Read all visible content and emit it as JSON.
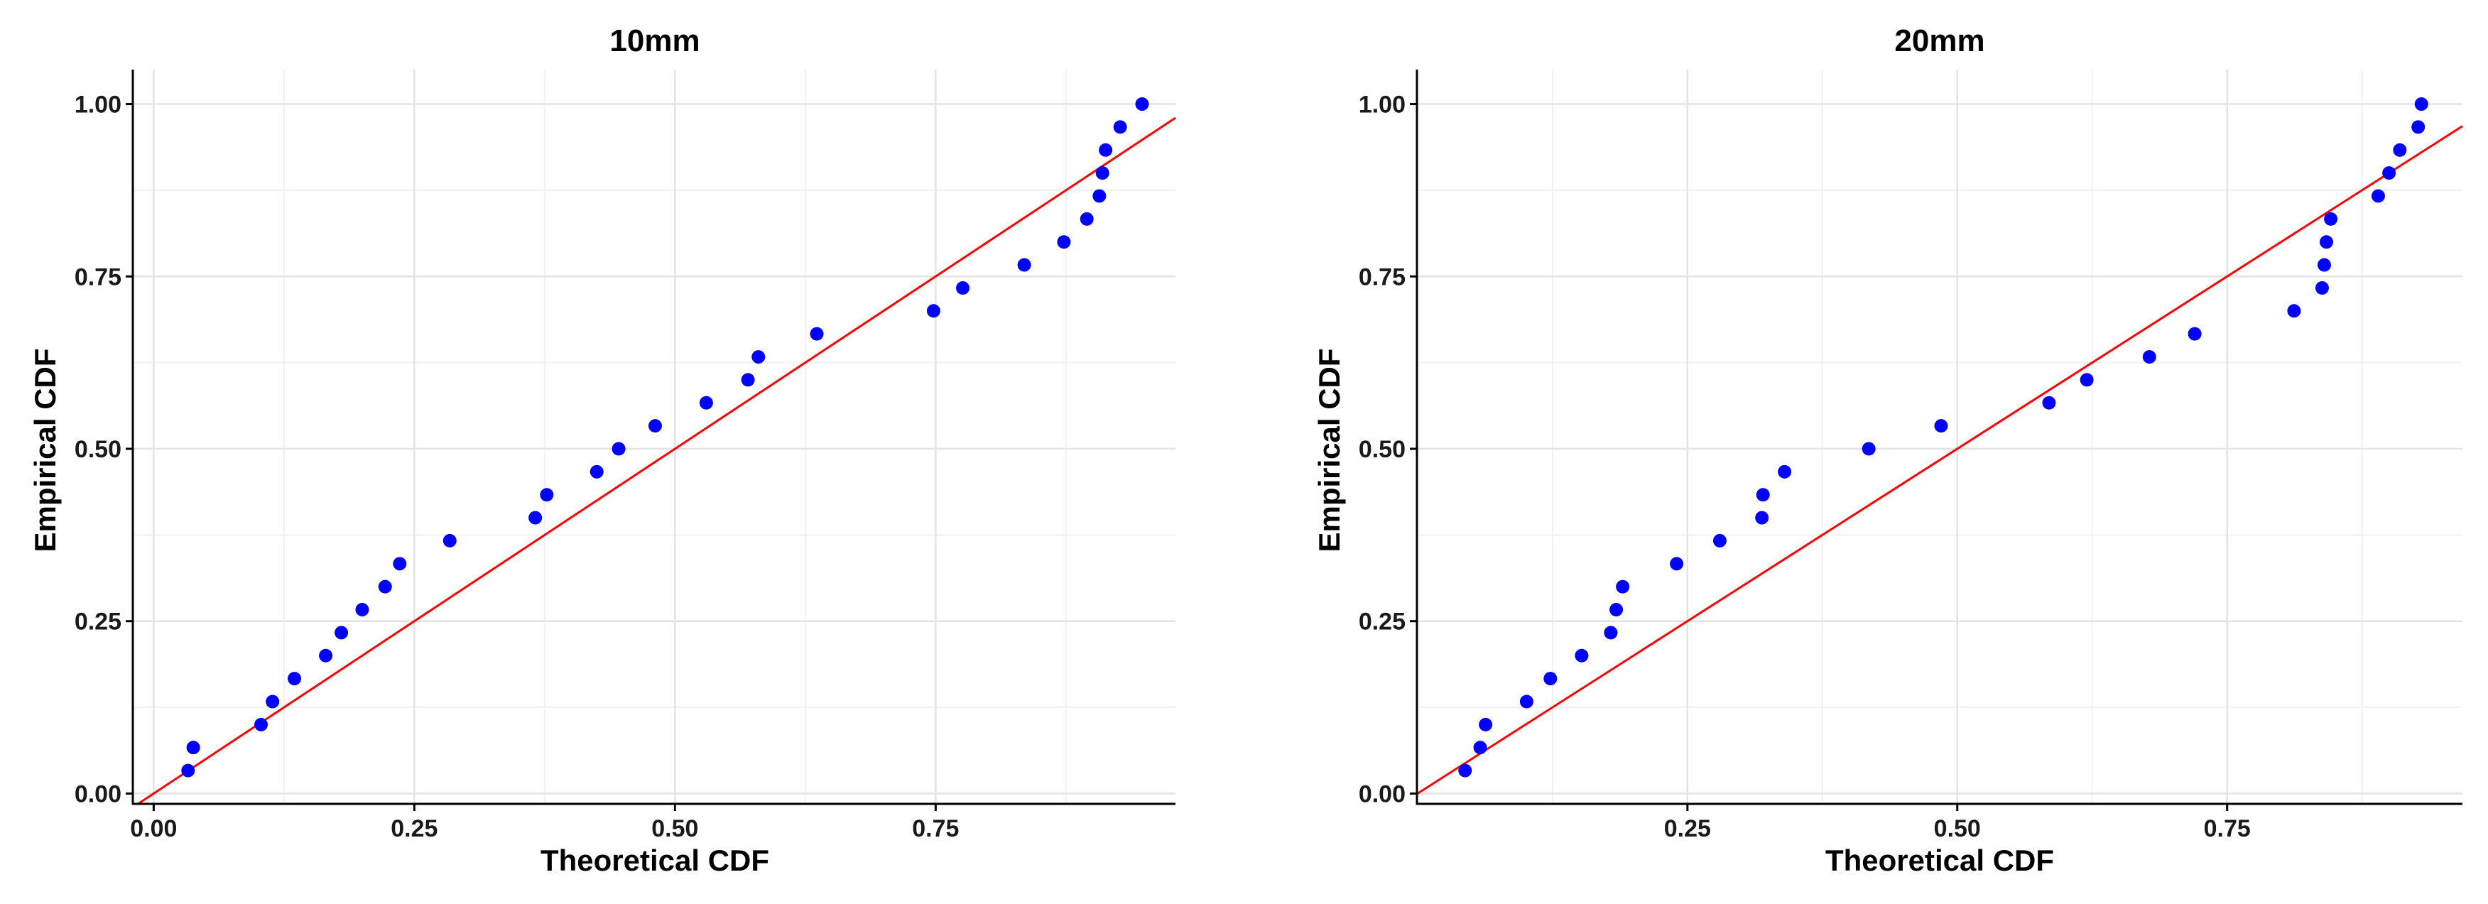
{
  "colors": {
    "points": "#0000ff",
    "reference_line": "#ff0000",
    "grid_major": "#e3e3e3",
    "grid_minor": "#f1f1f1",
    "axis": "#000000",
    "background": "#ffffff"
  },
  "chart_data": [
    {
      "type": "scatter",
      "title": "10mm",
      "xlabel": "Theoretical CDF",
      "ylabel": "Empirical CDF",
      "xlim": [
        -0.02,
        0.98
      ],
      "ylim": [
        -0.015,
        1.05
      ],
      "xticks": [
        0.0,
        0.25,
        0.5,
        0.75
      ],
      "xtick_labels": [
        "0.00",
        "0.25",
        "0.50",
        "0.75"
      ],
      "yticks": [
        0.0,
        0.25,
        0.5,
        0.75,
        1.0
      ],
      "ytick_labels": [
        "0.00",
        "0.25",
        "0.50",
        "0.75",
        "1.00"
      ],
      "grid": true,
      "reference_line": {
        "slope": 1,
        "intercept": 0
      },
      "points": {
        "x": [
          0.033,
          0.038,
          0.103,
          0.114,
          0.135,
          0.165,
          0.18,
          0.2,
          0.222,
          0.236,
          0.284,
          0.366,
          0.377,
          0.425,
          0.446,
          0.481,
          0.53,
          0.57,
          0.58,
          0.636,
          0.748,
          0.776,
          0.835,
          0.873,
          0.895,
          0.907,
          0.91,
          0.913,
          0.927,
          0.948
        ],
        "y": [
          0.0333,
          0.0667,
          0.1,
          0.1333,
          0.1667,
          0.2,
          0.2333,
          0.2667,
          0.3,
          0.3333,
          0.3667,
          0.4,
          0.4333,
          0.4667,
          0.5,
          0.5333,
          0.5667,
          0.6,
          0.6333,
          0.6667,
          0.7,
          0.7333,
          0.7667,
          0.8,
          0.8333,
          0.8667,
          0.9,
          0.9333,
          0.9667,
          1.0
        ]
      }
    },
    {
      "type": "scatter",
      "title": "20mm",
      "xlabel": "Theoretical CDF",
      "ylabel": "Empirical CDF",
      "xlim": [
        -0.0006,
        0.968
      ],
      "ylim": [
        -0.015,
        1.05
      ],
      "xticks": [
        0.25,
        0.5,
        0.75
      ],
      "xtick_labels": [
        "0.25",
        "0.50",
        "0.75"
      ],
      "yticks": [
        0.0,
        0.25,
        0.5,
        0.75,
        1.0
      ],
      "ytick_labels": [
        "0.00",
        "0.25",
        "0.50",
        "0.75",
        "1.00"
      ],
      "grid": true,
      "reference_line": {
        "slope": 1,
        "intercept": 0
      },
      "points": {
        "x": [
          0.044,
          0.058,
          0.063,
          0.101,
          0.123,
          0.152,
          0.179,
          0.184,
          0.19,
          0.24,
          0.28,
          0.319,
          0.32,
          0.34,
          0.418,
          0.485,
          0.585,
          0.62,
          0.678,
          0.72,
          0.812,
          0.838,
          0.84,
          0.842,
          0.846,
          0.89,
          0.9,
          0.91,
          0.927,
          0.93
        ],
        "y": [
          0.0333,
          0.0667,
          0.1,
          0.1333,
          0.1667,
          0.2,
          0.2333,
          0.2667,
          0.3,
          0.3333,
          0.3667,
          0.4,
          0.4333,
          0.4667,
          0.5,
          0.5333,
          0.5667,
          0.6,
          0.6333,
          0.6667,
          0.7,
          0.7333,
          0.7667,
          0.8,
          0.8333,
          0.8667,
          0.9,
          0.9333,
          0.9667,
          1.0
        ]
      }
    }
  ]
}
